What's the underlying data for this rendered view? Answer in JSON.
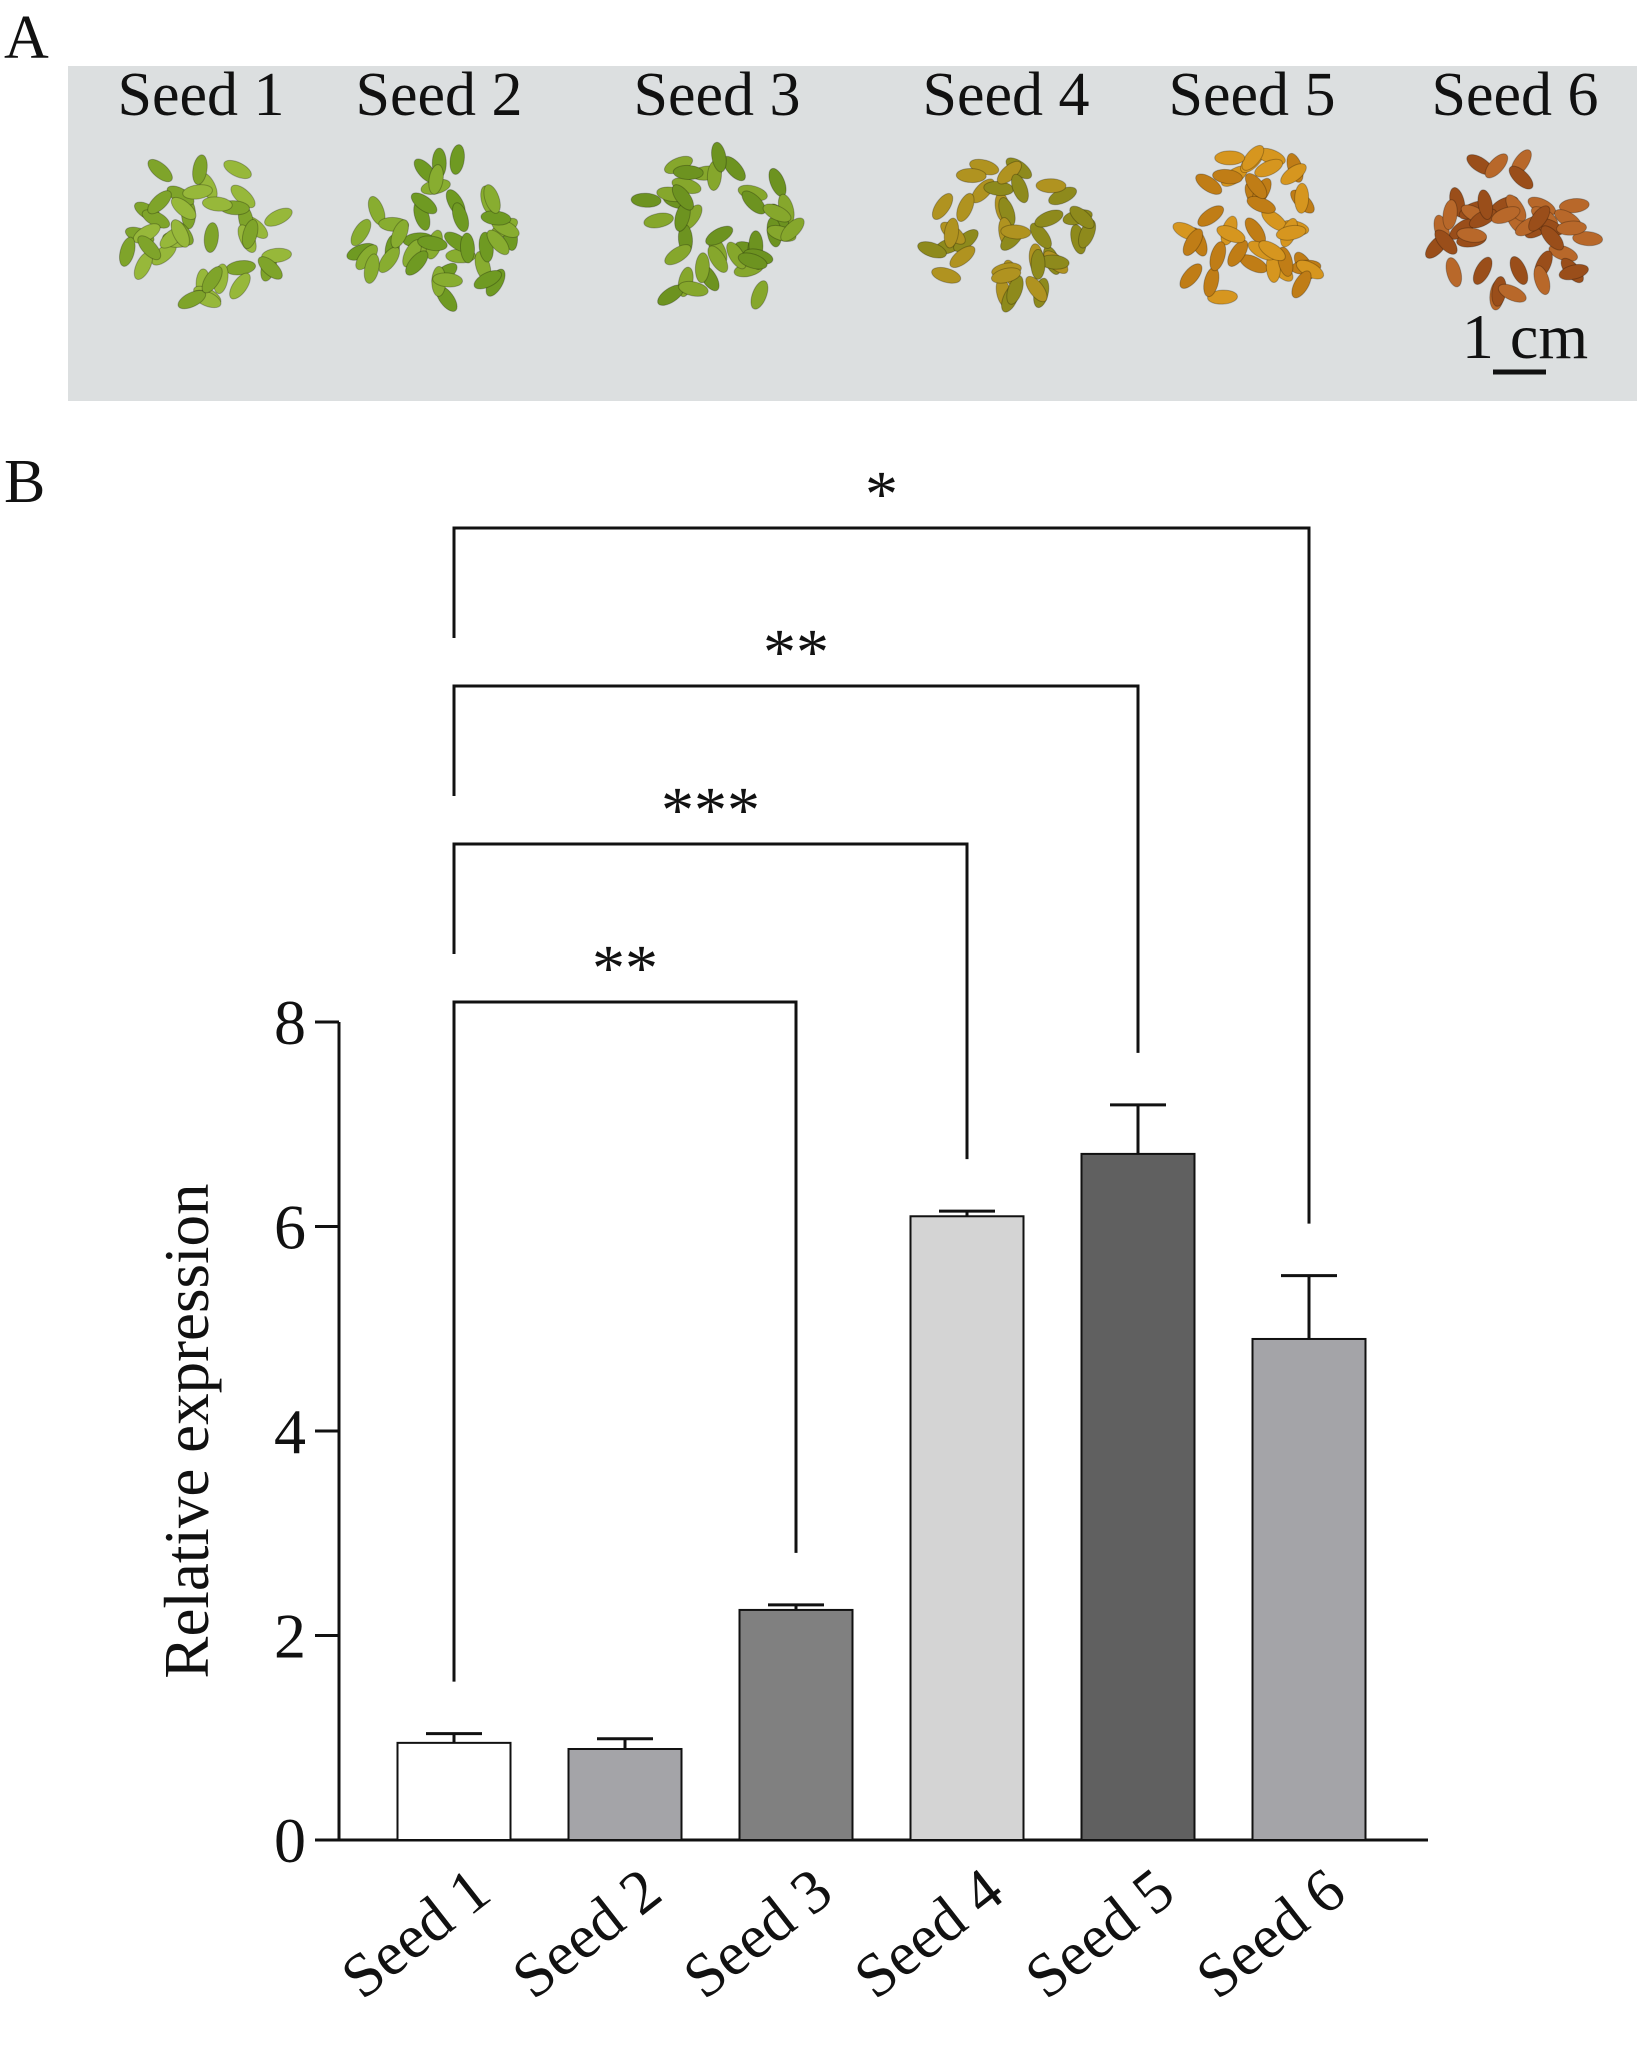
{
  "panel_a": {
    "label": "A",
    "seed_labels": [
      "Seed 1",
      "Seed 2",
      "Seed 3",
      "Seed 4",
      "Seed 5",
      "Seed 6"
    ],
    "scale_bar": "1 cm"
  },
  "chart_data": {
    "type": "bar",
    "panel_label": "B",
    "y_label": "Relative expression",
    "categories": [
      "Seed 1",
      "Seed 2",
      "Seed 3",
      "Seed 4",
      "Seed 5",
      "Seed 6"
    ],
    "values": [
      0.95,
      0.89,
      2.25,
      6.1,
      6.71,
      4.9
    ],
    "errors": [
      0.09,
      0.1,
      0.05,
      0.05,
      0.48,
      0.62
    ],
    "colors": [
      "#ffffff",
      "#a4a4a8",
      "#808080",
      "#d4d4d4",
      "#606060",
      "#a4a4a8"
    ],
    "ylim": [
      0,
      8
    ],
    "yticks": [
      0,
      2,
      4,
      6,
      8
    ],
    "significance": [
      {
        "pair": [
          "Seed 1",
          "Seed 3"
        ],
        "label": "**"
      },
      {
        "pair": [
          "Seed 1",
          "Seed 4"
        ],
        "label": "***"
      },
      {
        "pair": [
          "Seed 1",
          "Seed 5"
        ],
        "label": "**"
      },
      {
        "pair": [
          "Seed 1",
          "Seed 6"
        ],
        "label": "*"
      }
    ]
  }
}
